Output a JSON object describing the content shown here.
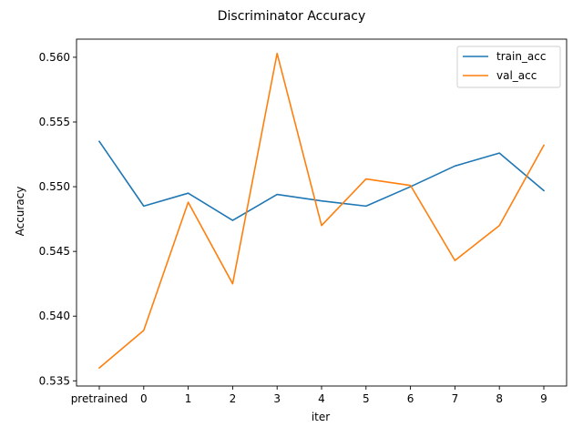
{
  "chart_data": {
    "type": "line",
    "title": "Discriminator Accuracy",
    "xlabel": "iter",
    "ylabel": "Accuracy",
    "categories": [
      "pretrained",
      "0",
      "1",
      "2",
      "3",
      "4",
      "5",
      "6",
      "7",
      "8",
      "9"
    ],
    "ylim": [
      0.5346,
      0.5614
    ],
    "yticks": [
      "0.535",
      "0.540",
      "0.545",
      "0.550",
      "0.555",
      "0.560"
    ],
    "legend_position": "top-right",
    "grid": false,
    "series": [
      {
        "name": "train_acc",
        "color": "#1f77b4",
        "values": [
          0.5535,
          0.5485,
          0.5495,
          0.5474,
          0.5494,
          0.5489,
          0.5485,
          0.55,
          0.5516,
          0.5526,
          0.5497
        ]
      },
      {
        "name": "val_acc",
        "color": "#ff7f0e",
        "values": [
          0.536,
          0.5389,
          0.5488,
          0.5425,
          0.5603,
          0.547,
          0.5506,
          0.5501,
          0.5443,
          0.547,
          0.5532
        ]
      }
    ]
  }
}
